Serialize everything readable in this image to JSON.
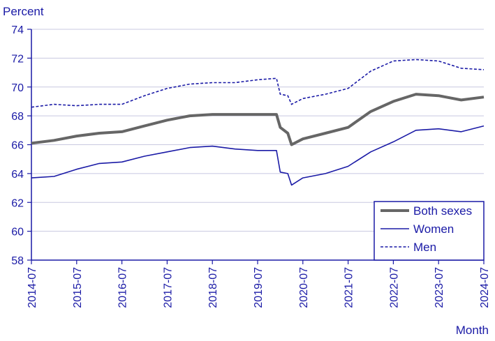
{
  "chart_data": {
    "type": "line",
    "ylabel": "Percent",
    "xlabel": "Month",
    "ylim": [
      58,
      74
    ],
    "yticks": [
      58,
      60,
      62,
      64,
      66,
      68,
      70,
      72,
      74
    ],
    "xticks": [
      "2014-07",
      "2015-07",
      "2016-07",
      "2017-07",
      "2018-07",
      "2019-07",
      "2020-07",
      "2021-07",
      "2022-07",
      "2023-07",
      "2024-07"
    ],
    "grid": "horizontal",
    "legend_position": "bottom-right",
    "colors": {
      "axis": "#1a1aa6",
      "grid": "#c8c8e0",
      "both": "#666666",
      "women": "#1a1aa6",
      "men": "#1a1aa6"
    },
    "series": [
      {
        "name": "Both sexes",
        "style": "thick-gray",
        "x": [
          "2014-07",
          "2015-01",
          "2015-07",
          "2016-01",
          "2016-07",
          "2017-01",
          "2017-07",
          "2018-01",
          "2018-07",
          "2019-01",
          "2019-07",
          "2019-12",
          "2020-01",
          "2020-03",
          "2020-04",
          "2020-07",
          "2021-01",
          "2021-07",
          "2022-01",
          "2022-07",
          "2023-01",
          "2023-07",
          "2024-01",
          "2024-07"
        ],
        "values": [
          66.1,
          66.3,
          66.6,
          66.8,
          66.9,
          67.3,
          67.7,
          68.0,
          68.1,
          68.1,
          68.1,
          68.1,
          67.2,
          66.8,
          66.0,
          66.4,
          66.8,
          67.2,
          68.3,
          69.0,
          69.5,
          69.4,
          69.1,
          69.3
        ]
      },
      {
        "name": "Women",
        "style": "solid-blue",
        "x": [
          "2014-07",
          "2015-01",
          "2015-07",
          "2016-01",
          "2016-07",
          "2017-01",
          "2017-07",
          "2018-01",
          "2018-07",
          "2019-01",
          "2019-07",
          "2019-12",
          "2020-01",
          "2020-03",
          "2020-04",
          "2020-07",
          "2021-01",
          "2021-07",
          "2022-01",
          "2022-07",
          "2023-01",
          "2023-07",
          "2024-01",
          "2024-07"
        ],
        "values": [
          63.7,
          63.8,
          64.3,
          64.7,
          64.8,
          65.2,
          65.5,
          65.8,
          65.9,
          65.7,
          65.6,
          65.6,
          64.1,
          64.0,
          63.2,
          63.7,
          64.0,
          64.5,
          65.5,
          66.2,
          67.0,
          67.1,
          66.9,
          67.3
        ]
      },
      {
        "name": "Men",
        "style": "dashed-blue",
        "x": [
          "2014-07",
          "2015-01",
          "2015-07",
          "2016-01",
          "2016-07",
          "2017-01",
          "2017-07",
          "2018-01",
          "2018-07",
          "2019-01",
          "2019-07",
          "2019-12",
          "2020-01",
          "2020-03",
          "2020-04",
          "2020-07",
          "2021-01",
          "2021-07",
          "2022-01",
          "2022-07",
          "2023-01",
          "2023-07",
          "2024-01",
          "2024-07"
        ],
        "values": [
          68.6,
          68.8,
          68.7,
          68.8,
          68.8,
          69.4,
          69.9,
          70.2,
          70.3,
          70.3,
          70.5,
          70.6,
          69.5,
          69.4,
          68.8,
          69.2,
          69.5,
          69.9,
          71.1,
          71.8,
          71.9,
          71.8,
          71.3,
          71.2
        ]
      }
    ]
  }
}
